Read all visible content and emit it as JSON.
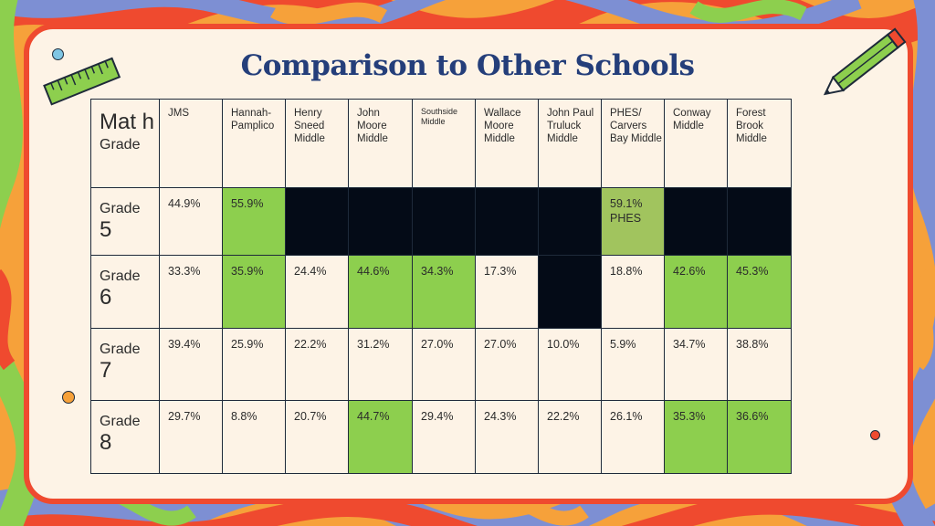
{
  "slide": {
    "title": "Comparison to Other Schools",
    "corner_subject": "Mat h",
    "corner_label": "Grade",
    "colors": {
      "highlight": "#8dcf4e",
      "highlight_muted": "#a1c45e",
      "no_data": "#040b17",
      "frame": "#ef4a2f",
      "title": "#243e7a"
    },
    "icons": [
      "ruler-icon",
      "pencil-icon"
    ]
  },
  "table": {
    "columns": [
      {
        "id": "jms",
        "label": "JMS"
      },
      {
        "id": "hannah",
        "label": "Hannah-Pamplico"
      },
      {
        "id": "henry",
        "label": "Henry Sneed Middle"
      },
      {
        "id": "johnmoore",
        "label": "John Moore Middle"
      },
      {
        "id": "southside",
        "label": "Southside Middle"
      },
      {
        "id": "wallace",
        "label": "Wallace Moore Middle"
      },
      {
        "id": "truluck",
        "label": "John Paul Truluck Middle"
      },
      {
        "id": "phes",
        "label": "PHES/ Carvers Bay Middle"
      },
      {
        "id": "conway",
        "label": "Conway Middle"
      },
      {
        "id": "forest",
        "label": "Forest Brook Middle"
      }
    ],
    "rows": [
      {
        "grade_label": "Grade",
        "grade_num": "5",
        "cells": [
          "44.9%",
          "55.9%",
          "",
          "",
          "",
          "",
          "",
          "59.1% PHES",
          "",
          ""
        ],
        "styles": [
          "",
          "green",
          "black",
          "black",
          "black",
          "black",
          "black",
          "dgreen",
          "black",
          "black"
        ]
      },
      {
        "grade_label": "Grade",
        "grade_num": "6",
        "cells": [
          "33.3%",
          "35.9%",
          "24.4%",
          "44.6%",
          "34.3%",
          "17.3%",
          "",
          "18.8%",
          "42.6%",
          "45.3%"
        ],
        "styles": [
          "",
          "green",
          "",
          "green",
          "green",
          "",
          "black",
          "",
          "green",
          "green"
        ]
      },
      {
        "grade_label": "Grade",
        "grade_num": "7",
        "cells": [
          "39.4%",
          "25.9%",
          "22.2%",
          "31.2%",
          "27.0%",
          "27.0%",
          "10.0%",
          "5.9%",
          "34.7%",
          "38.8%"
        ],
        "styles": [
          "",
          "",
          "",
          "",
          "",
          "",
          "",
          "",
          "",
          ""
        ]
      },
      {
        "grade_label": "Grade",
        "grade_num": "8",
        "cells": [
          "29.7%",
          "8.8%",
          "20.7%",
          "44.7%",
          "29.4%",
          "24.3%",
          "22.2%",
          "26.1%",
          "35.3%",
          "36.6%"
        ],
        "styles": [
          "",
          "",
          "",
          "green",
          "",
          "",
          "",
          "",
          "green",
          "green"
        ]
      }
    ]
  }
}
